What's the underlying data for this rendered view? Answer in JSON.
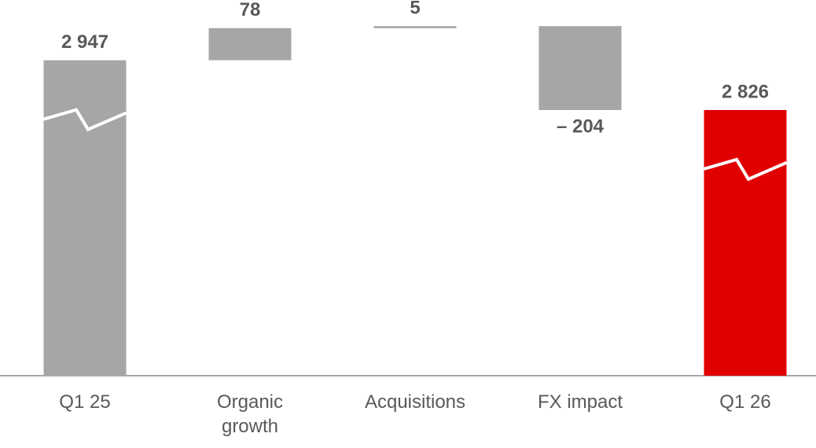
{
  "chart_data": {
    "type": "waterfall",
    "categories": [
      "Q1 25",
      "Organic\ngrowth",
      "Acquisitions",
      "FX impact",
      "Q1 26"
    ],
    "values": [
      2947,
      78,
      5,
      -204,
      2826
    ],
    "value_labels": [
      "2 947",
      "78",
      "5",
      "– 204",
      "2 826"
    ],
    "totals": [
      true,
      false,
      false,
      false,
      true
    ],
    "colors": [
      "#a6a6a6",
      "#a6a6a6",
      "#a6a6a6",
      "#a6a6a6",
      "#e00000"
    ],
    "ylim": [
      2180,
      3040
    ],
    "axis_break": true
  }
}
